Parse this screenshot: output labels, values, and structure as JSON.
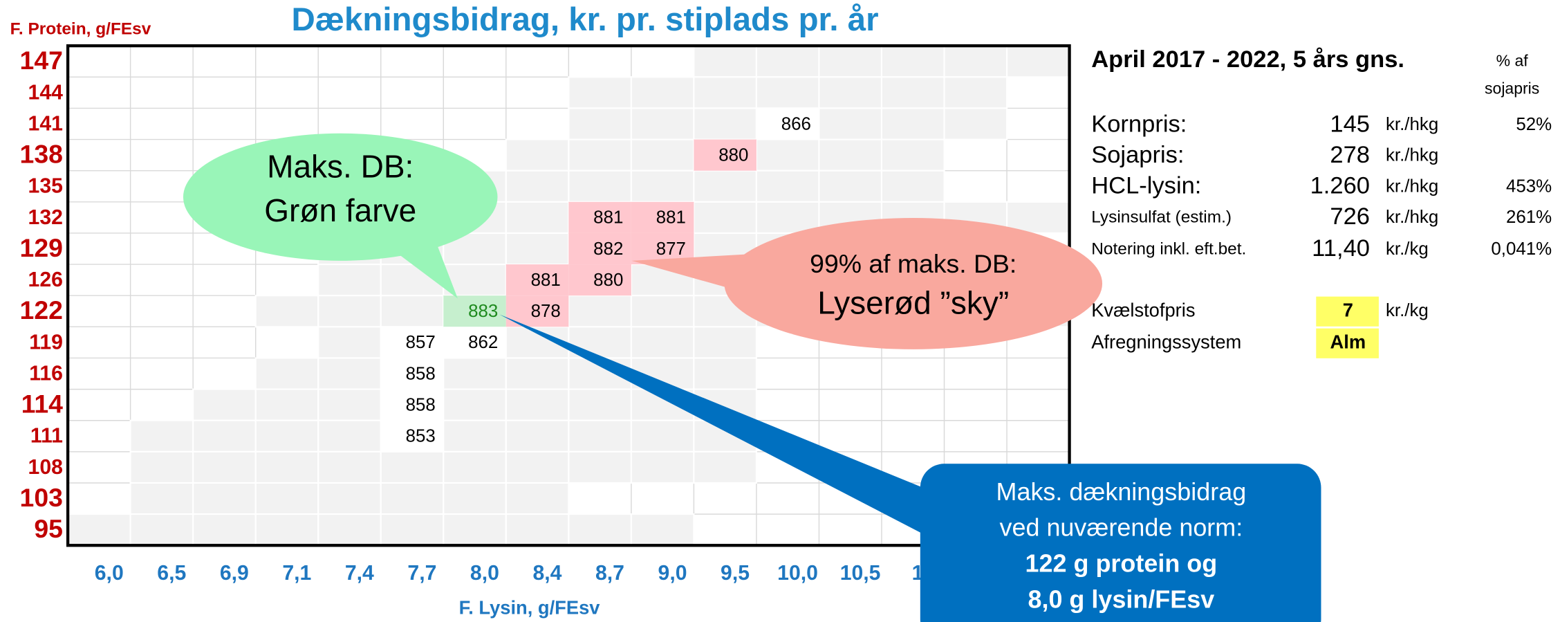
{
  "chart_data": {
    "type": "heatmap",
    "title": "Dækningsbidrag, kr. pr. stiplads pr. år",
    "y_label": "F. Protein, g/FEsv",
    "x_label": "F. Lysin, g/FEsv",
    "categories": [
      "6,0",
      "6,5",
      "6,9",
      "7,1",
      "7,4",
      "7,7",
      "8,0",
      "8,4",
      "8,7",
      "9,0",
      "9,5",
      "10,0",
      "10,5",
      "11",
      null,
      null
    ],
    "rows": [
      "147",
      "144",
      "141",
      "138",
      "135",
      "132",
      "129",
      "126",
      "122",
      "119",
      "116",
      "114",
      "111",
      "108",
      "103",
      "95"
    ],
    "values": [
      [
        null,
        null,
        null,
        null,
        null,
        null,
        null,
        null,
        null,
        null,
        null,
        null,
        null,
        null,
        null,
        null
      ],
      [
        null,
        null,
        null,
        null,
        null,
        null,
        null,
        null,
        null,
        null,
        null,
        null,
        null,
        null,
        null,
        null
      ],
      [
        null,
        null,
        null,
        null,
        null,
        null,
        null,
        null,
        null,
        null,
        null,
        866,
        null,
        null,
        null,
        null
      ],
      [
        null,
        null,
        null,
        null,
        null,
        null,
        null,
        null,
        null,
        null,
        880,
        null,
        null,
        null,
        null,
        null
      ],
      [
        null,
        null,
        null,
        null,
        null,
        null,
        null,
        null,
        null,
        null,
        null,
        null,
        null,
        null,
        null,
        null
      ],
      [
        null,
        null,
        null,
        null,
        null,
        null,
        null,
        null,
        881,
        881,
        null,
        null,
        null,
        null,
        null,
        null
      ],
      [
        null,
        null,
        null,
        null,
        null,
        null,
        null,
        null,
        882,
        877,
        null,
        null,
        null,
        null,
        null,
        null
      ],
      [
        null,
        null,
        null,
        null,
        null,
        null,
        null,
        881,
        880,
        null,
        null,
        null,
        null,
        null,
        null,
        null
      ],
      [
        null,
        null,
        null,
        null,
        null,
        null,
        883,
        878,
        null,
        null,
        null,
        null,
        null,
        null,
        null,
        null
      ],
      [
        null,
        null,
        null,
        null,
        null,
        857,
        862,
        null,
        null,
        null,
        null,
        null,
        null,
        null,
        null,
        null
      ],
      [
        null,
        null,
        null,
        null,
        null,
        858,
        null,
        null,
        null,
        null,
        null,
        null,
        null,
        null,
        null,
        null
      ],
      [
        null,
        null,
        null,
        null,
        null,
        858,
        null,
        null,
        null,
        null,
        null,
        null,
        null,
        null,
        null,
        null
      ],
      [
        null,
        null,
        null,
        null,
        null,
        853,
        null,
        null,
        null,
        null,
        null,
        null,
        null,
        null,
        null,
        null
      ],
      [
        null,
        null,
        null,
        null,
        null,
        null,
        null,
        null,
        null,
        null,
        null,
        null,
        null,
        null,
        null,
        null
      ],
      [
        null,
        null,
        null,
        null,
        null,
        null,
        null,
        null,
        null,
        null,
        null,
        null,
        null,
        null,
        null,
        null
      ],
      [
        null,
        null,
        null,
        null,
        null,
        null,
        null,
        null,
        null,
        null,
        null,
        null,
        null,
        null,
        null,
        null
      ]
    ],
    "max_text_color": "#1e8a1e",
    "max_color": "#c6efce",
    "cell_colors": [
      [
        null,
        null,
        null,
        null,
        null,
        null,
        null,
        null,
        null,
        null,
        null,
        null,
        null,
        null,
        null,
        null
      ],
      [
        null,
        null,
        null,
        null,
        null,
        null,
        null,
        null,
        null,
        null,
        null,
        null,
        null,
        null,
        null,
        null
      ],
      [
        null,
        null,
        null,
        null,
        null,
        null,
        null,
        null,
        null,
        null,
        null,
        "#ffffff",
        null,
        null,
        null,
        null
      ],
      [
        null,
        null,
        null,
        null,
        null,
        null,
        null,
        null,
        null,
        null,
        "#ffc7ce",
        null,
        null,
        null,
        null,
        null
      ],
      [
        null,
        null,
        null,
        null,
        null,
        null,
        null,
        null,
        null,
        null,
        null,
        null,
        null,
        null,
        null,
        null
      ],
      [
        null,
        null,
        null,
        null,
        null,
        null,
        null,
        null,
        "#ffc7ce",
        "#ffc7ce",
        null,
        null,
        null,
        null,
        null,
        null
      ],
      [
        null,
        null,
        null,
        null,
        null,
        null,
        null,
        null,
        "#ffc7ce",
        "#ffc7ce",
        null,
        null,
        null,
        null,
        null,
        null
      ],
      [
        null,
        null,
        null,
        null,
        null,
        null,
        null,
        "#ffc7ce",
        "#ffc7ce",
        null,
        null,
        null,
        null,
        null,
        null,
        null
      ],
      [
        null,
        null,
        null,
        null,
        null,
        null,
        "#c6efce",
        "#ffc7ce",
        null,
        null,
        null,
        null,
        null,
        null,
        null,
        null
      ],
      [
        null,
        null,
        null,
        null,
        null,
        "#ffffff",
        "#ffffff",
        null,
        null,
        null,
        null,
        null,
        null,
        null,
        null,
        null
      ],
      [
        null,
        null,
        null,
        null,
        null,
        "#ffffff",
        null,
        null,
        null,
        null,
        null,
        null,
        null,
        null,
        null,
        null
      ],
      [
        null,
        null,
        null,
        null,
        null,
        "#ffffff",
        null,
        null,
        null,
        null,
        null,
        null,
        null,
        null,
        null,
        null
      ],
      [
        null,
        null,
        null,
        null,
        null,
        "#ffffff",
        null,
        null,
        null,
        null,
        null,
        null,
        null,
        null,
        null,
        null
      ],
      [
        null,
        null,
        null,
        null,
        null,
        null,
        null,
        null,
        null,
        null,
        null,
        null,
        null,
        null,
        null,
        null
      ],
      [
        null,
        null,
        null,
        null,
        null,
        null,
        null,
        null,
        null,
        null,
        null,
        null,
        null,
        null,
        null,
        null
      ],
      [
        null,
        null,
        null,
        null,
        null,
        null,
        null,
        null,
        null,
        null,
        null,
        null,
        null,
        null,
        null,
        null
      ]
    ]
  },
  "callouts": {
    "green": [
      "Maks. DB:",
      "Grøn farve"
    ],
    "pink": [
      "99% af maks. DB:",
      "Lyserød ”sky”"
    ],
    "blue": [
      "Maks. dækningsbidrag",
      "ved nuværende norm:",
      "122 g protein og",
      "8,0 g lysin/FEsv"
    ]
  },
  "panel": {
    "title": "April 2017 - 2022, 5 års gns.",
    "pct_header": [
      "% af",
      "sojapris"
    ],
    "rows": [
      [
        "Kornpris:",
        "145",
        "kr./hkg",
        "52%"
      ],
      [
        "Sojapris:",
        "278",
        "kr./hkg",
        null
      ],
      [
        "HCL-lysin:",
        "1.260",
        "kr./hkg",
        "453%"
      ],
      [
        "Lysinsulfat (estim.)",
        "726",
        "kr./hkg",
        "261%"
      ],
      [
        "Notering inkl. eft.bet.",
        "11,40",
        "kr./kg",
        "0,041%"
      ]
    ],
    "settings": [
      [
        "Kvælstofpris",
        "7",
        "kr./kg"
      ],
      [
        "Afregningssystem",
        "Alm",
        null
      ]
    ]
  }
}
